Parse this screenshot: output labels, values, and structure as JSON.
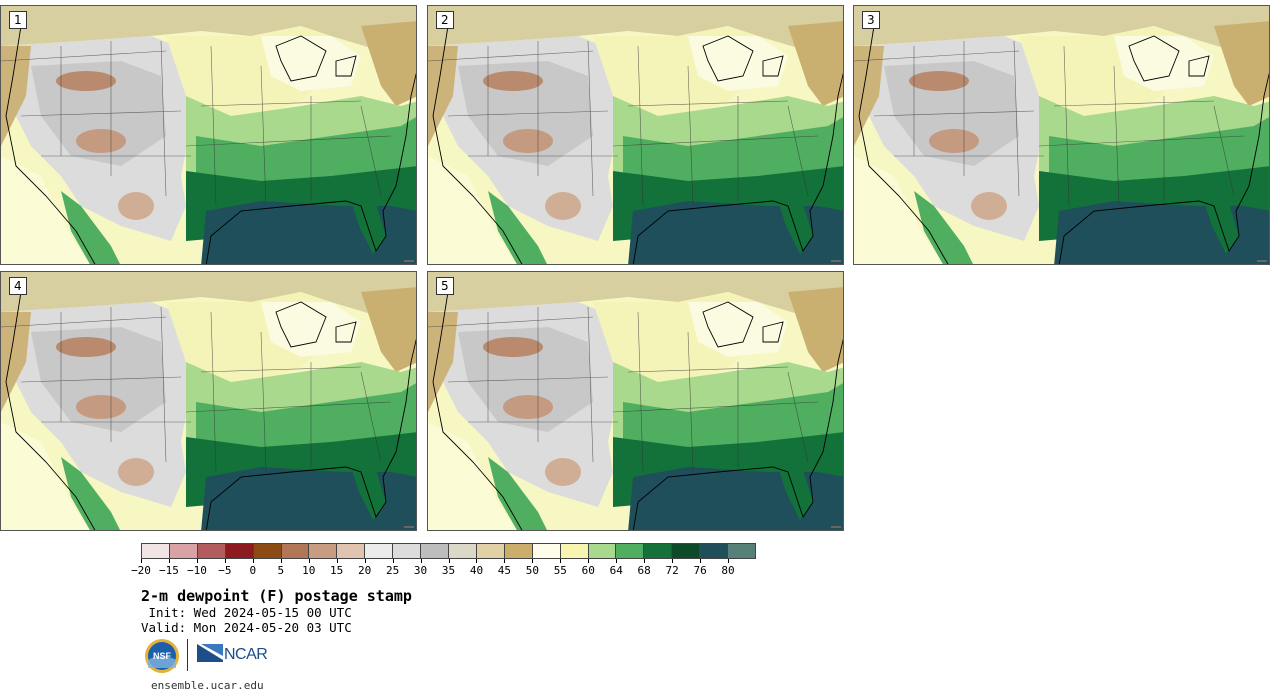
{
  "panels": [
    {
      "label": "1"
    },
    {
      "label": "2"
    },
    {
      "label": "3"
    },
    {
      "label": "4"
    },
    {
      "label": "5"
    }
  ],
  "legend": {
    "colors": [
      "#f2e4e4",
      "#d9a3a5",
      "#b25c5e",
      "#8c1a1f",
      "#8c4a14",
      "#b07656",
      "#c79c82",
      "#e0c4b0",
      "#ececec",
      "#dcdcdc",
      "#bdbdbd",
      "#dcd8c8",
      "#e0d2a4",
      "#cbae6a",
      "#fdfdea",
      "#f6f6b0",
      "#a8d98c",
      "#4fae60",
      "#12723a",
      "#0c4a2a",
      "#1e4f5a",
      "#568078"
    ],
    "tick_labels": [
      "−20",
      "−15",
      "−10",
      "−5",
      "0",
      "5",
      "10",
      "15",
      "20",
      "25",
      "30",
      "35",
      "40",
      "45",
      "50",
      "55",
      "60",
      "64",
      "68",
      "72",
      "76",
      "80"
    ]
  },
  "title": "2-m dewpoint (F) postage stamp",
  "init_text": " Init: Wed 2024-05-15 00 UTC",
  "valid_text": "Valid: Mon 2024-05-20 03 UTC",
  "logos": {
    "nsf": "NSF",
    "ncar": "NCAR"
  },
  "website": "ensemble.ucar.edu"
}
